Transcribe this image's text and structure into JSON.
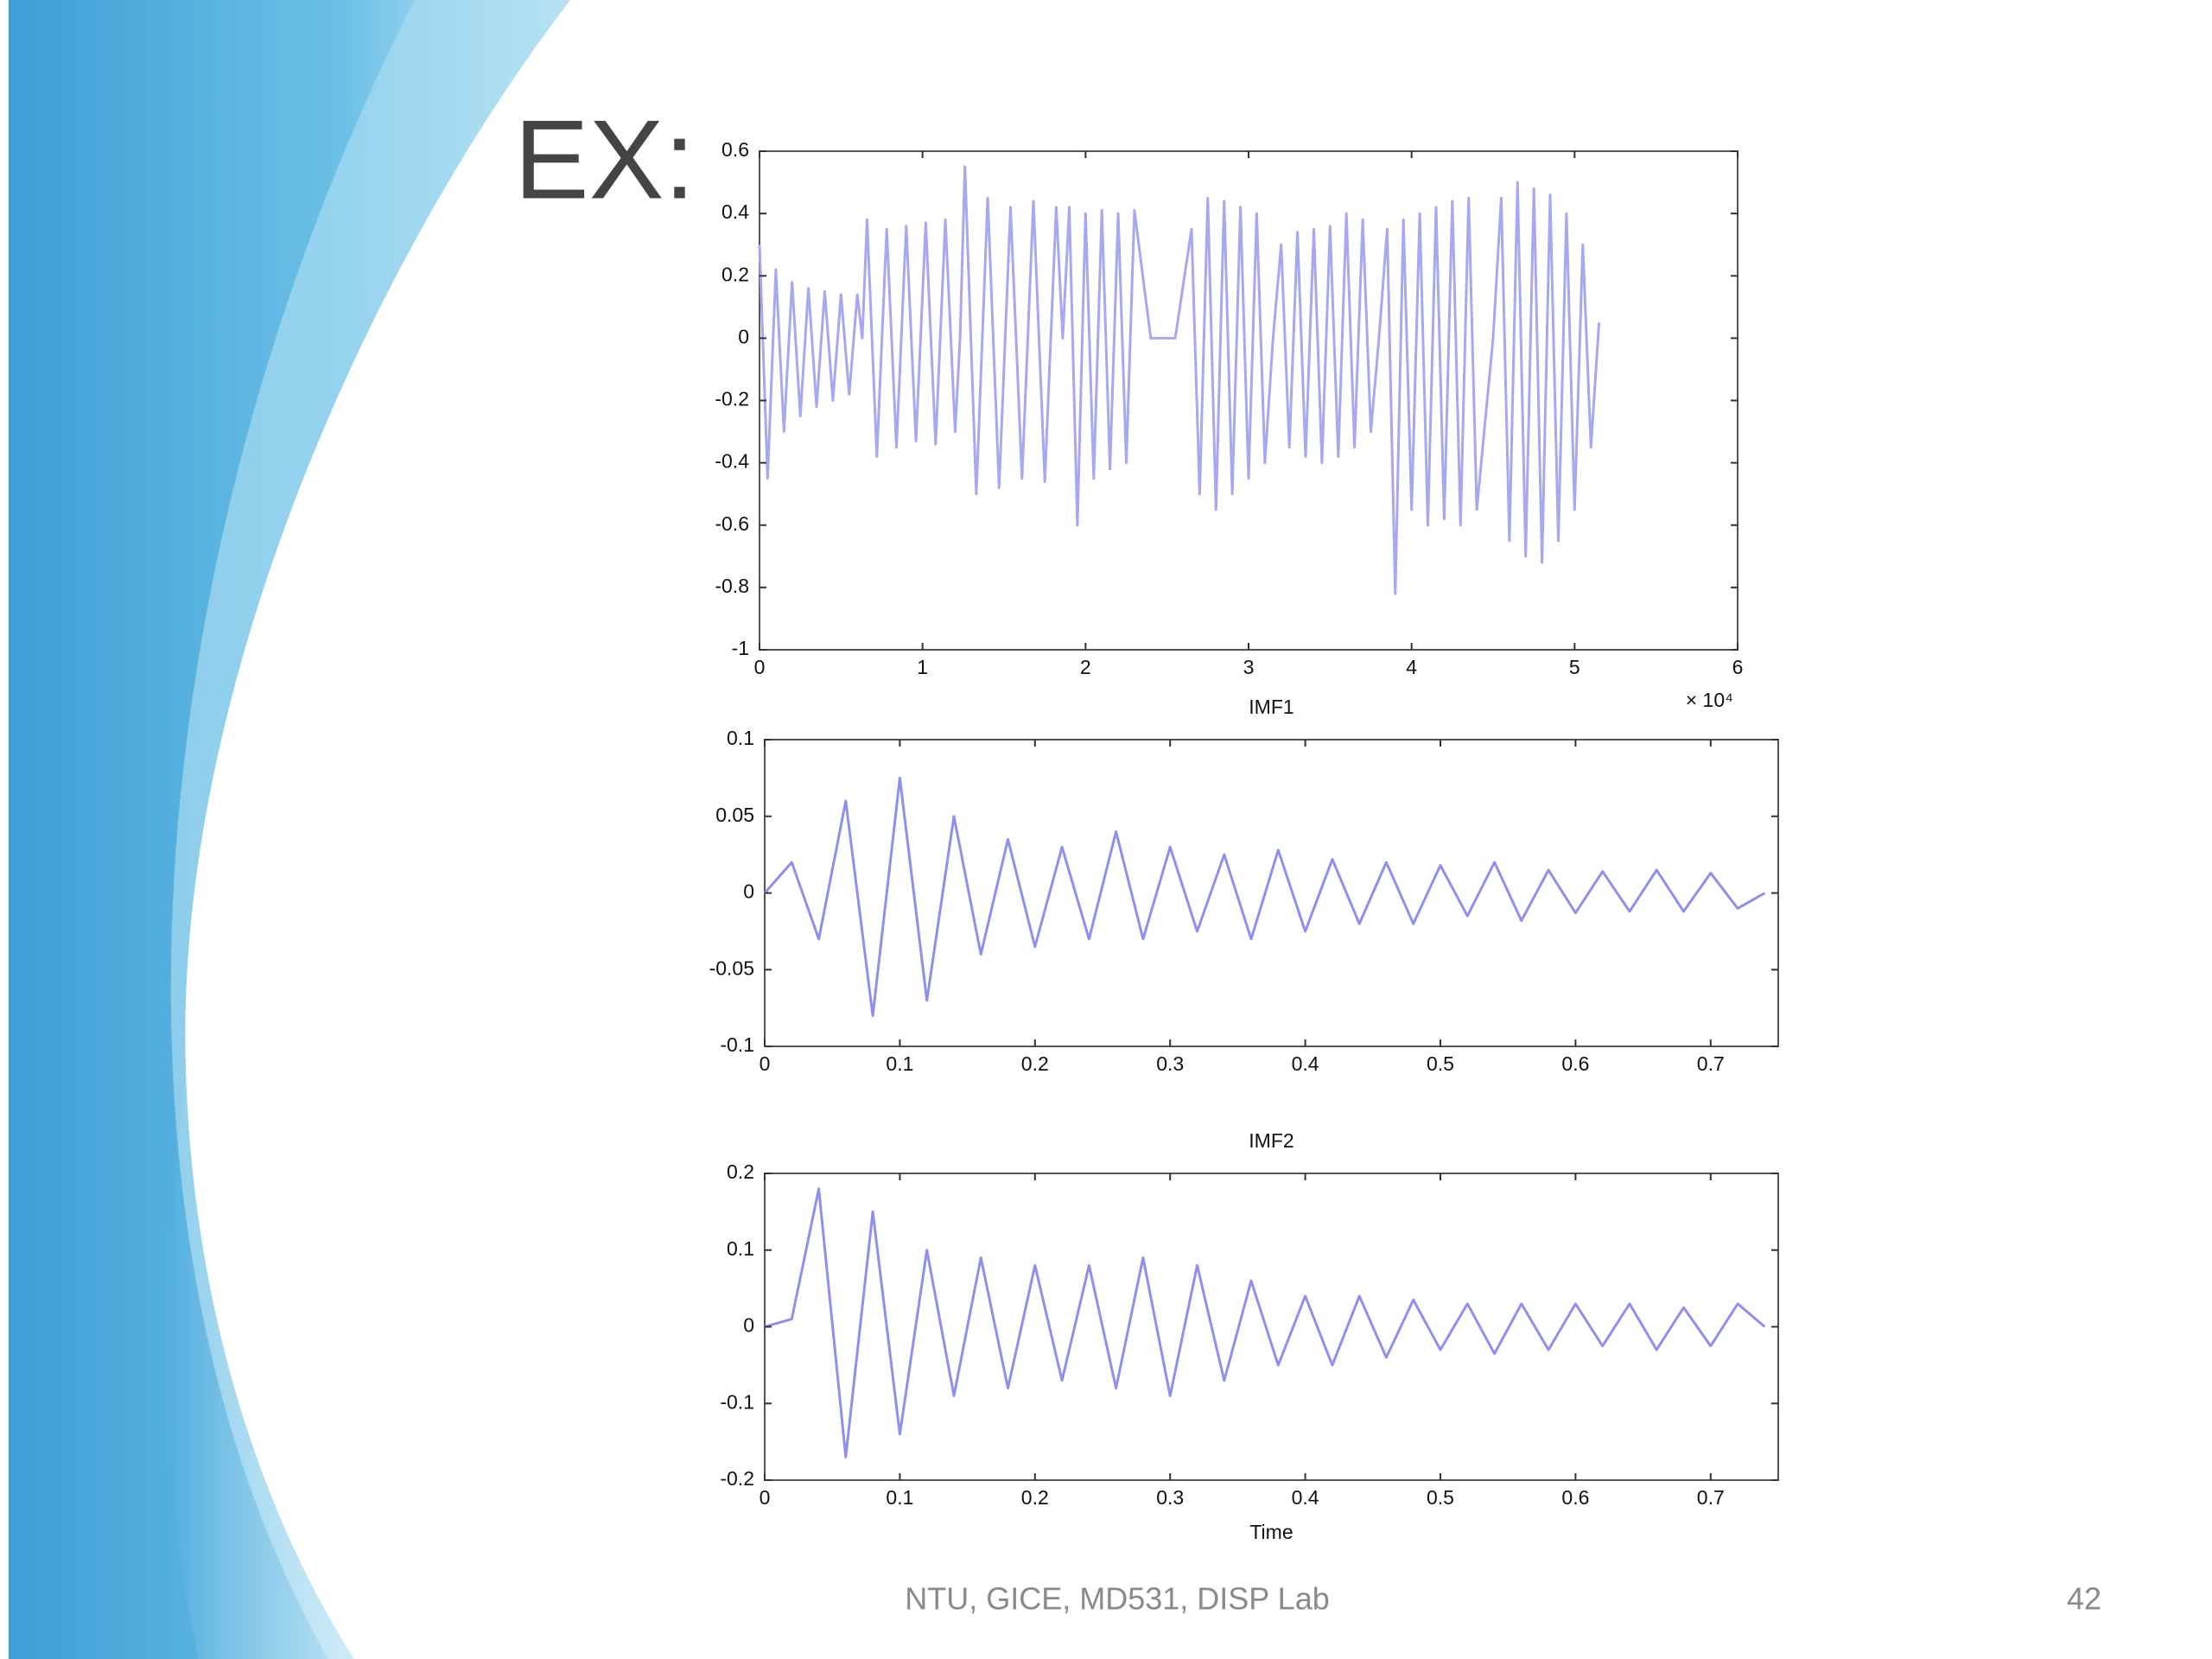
{
  "slide": {
    "heading": "EX:",
    "footer": "NTU, GICE, MD531, DISP Lab",
    "page_number": "42"
  },
  "chart_data": [
    {
      "type": "line",
      "x_scale_label": "× 10⁴",
      "color": "#a7a7f2",
      "x": [
        0,
        0.05,
        0.1,
        0.15,
        0.2,
        0.25,
        0.3,
        0.35,
        0.4,
        0.45,
        0.5,
        0.55,
        0.6,
        0.63,
        0.66,
        0.72,
        0.78,
        0.84,
        0.9,
        0.96,
        1.02,
        1.08,
        1.14,
        1.2,
        1.23,
        1.26,
        1.33,
        1.4,
        1.47,
        1.54,
        1.61,
        1.68,
        1.75,
        1.82,
        1.86,
        1.9,
        1.95,
        2,
        2.05,
        2.1,
        2.15,
        2.2,
        2.25,
        2.3,
        2.4,
        2.55,
        2.65,
        2.7,
        2.75,
        2.8,
        2.85,
        2.9,
        2.95,
        3,
        3.05,
        3.1,
        3.15,
        3.2,
        3.25,
        3.3,
        3.35,
        3.4,
        3.45,
        3.5,
        3.55,
        3.6,
        3.65,
        3.7,
        3.75,
        3.8,
        3.85,
        3.9,
        3.95,
        4,
        4.05,
        4.1,
        4.15,
        4.2,
        4.25,
        4.3,
        4.35,
        4.4,
        4.5,
        4.55,
        4.6,
        4.65,
        4.7,
        4.75,
        4.8,
        4.85,
        4.9,
        4.95,
        5,
        5.05,
        5.1,
        5.15
      ],
      "values": [
        0.3,
        -0.45,
        0.22,
        -0.3,
        0.18,
        -0.25,
        0.16,
        -0.22,
        0.15,
        -0.2,
        0.14,
        -0.18,
        0.14,
        0,
        0.38,
        -0.38,
        0.35,
        -0.35,
        0.36,
        -0.33,
        0.37,
        -0.34,
        0.38,
        -0.3,
        0,
        0.55,
        -0.5,
        0.45,
        -0.48,
        0.42,
        -0.45,
        0.44,
        -0.46,
        0.42,
        0,
        0.42,
        -0.6,
        0.4,
        -0.45,
        0.41,
        -0.42,
        0.4,
        -0.4,
        0.41,
        0,
        0,
        0.35,
        -0.5,
        0.45,
        -0.55,
        0.44,
        -0.5,
        0.42,
        -0.45,
        0.4,
        -0.4,
        0,
        0.3,
        -0.35,
        0.34,
        -0.38,
        0.35,
        -0.4,
        0.36,
        -0.38,
        0.4,
        -0.35,
        0.38,
        -0.3,
        0,
        0.35,
        -0.82,
        0.38,
        -0.55,
        0.4,
        -0.6,
        0.42,
        -0.58,
        0.44,
        -0.6,
        0.45,
        -0.55,
        0,
        0.45,
        -0.65,
        0.5,
        -0.7,
        0.48,
        -0.72,
        0.46,
        -0.65,
        0.4,
        -0.55,
        0.3,
        -0.35,
        0.05
      ],
      "xlim": [
        0,
        6
      ],
      "xticks": [
        0,
        1,
        2,
        3,
        4,
        5,
        6
      ],
      "ylim": [
        -1,
        0.6
      ],
      "yticks": [
        -1,
        -0.8,
        -0.6,
        -0.4,
        -0.2,
        0,
        0.2,
        0.4,
        0.6
      ]
    },
    {
      "type": "line",
      "title": "IMF1",
      "color": "#8f8fee",
      "x": [
        0,
        0.02,
        0.04,
        0.06,
        0.08,
        0.1,
        0.12,
        0.14,
        0.16,
        0.18,
        0.2,
        0.22,
        0.24,
        0.26,
        0.28,
        0.3,
        0.32,
        0.34,
        0.36,
        0.38,
        0.4,
        0.42,
        0.44,
        0.46,
        0.48,
        0.5,
        0.52,
        0.54,
        0.56,
        0.58,
        0.6,
        0.62,
        0.64,
        0.66,
        0.68,
        0.7,
        0.72,
        0.74
      ],
      "values": [
        0,
        0.02,
        -0.03,
        0.06,
        -0.08,
        0.075,
        -0.07,
        0.05,
        -0.04,
        0.035,
        -0.035,
        0.03,
        -0.03,
        0.04,
        -0.03,
        0.03,
        -0.025,
        0.025,
        -0.03,
        0.028,
        -0.025,
        0.022,
        -0.02,
        0.02,
        -0.02,
        0.018,
        -0.015,
        0.02,
        -0.018,
        0.015,
        -0.013,
        0.014,
        -0.012,
        0.015,
        -0.012,
        0.013,
        -0.01,
        0
      ],
      "xlim": [
        0,
        0.75
      ],
      "xticks": [
        0,
        0.1,
        0.2,
        0.3,
        0.4,
        0.5,
        0.6,
        0.7
      ],
      "ylim": [
        -0.1,
        0.1
      ],
      "yticks": [
        -0.1,
        -0.05,
        0,
        0.05,
        0.1
      ]
    },
    {
      "type": "line",
      "title": "IMF2",
      "xlabel": "Time",
      "color": "#8f8fee",
      "x": [
        0,
        0.02,
        0.04,
        0.06,
        0.08,
        0.1,
        0.12,
        0.14,
        0.16,
        0.18,
        0.2,
        0.22,
        0.24,
        0.26,
        0.28,
        0.3,
        0.32,
        0.34,
        0.36,
        0.38,
        0.4,
        0.42,
        0.44,
        0.46,
        0.48,
        0.5,
        0.52,
        0.54,
        0.56,
        0.58,
        0.6,
        0.62,
        0.64,
        0.66,
        0.68,
        0.7,
        0.72,
        0.74
      ],
      "values": [
        0,
        0.01,
        0.18,
        -0.17,
        0.15,
        -0.14,
        0.1,
        -0.09,
        0.09,
        -0.08,
        0.08,
        -0.07,
        0.08,
        -0.08,
        0.09,
        -0.09,
        0.08,
        -0.07,
        0.06,
        -0.05,
        0.04,
        -0.05,
        0.04,
        -0.04,
        0.035,
        -0.03,
        0.03,
        -0.035,
        0.03,
        -0.03,
        0.03,
        -0.025,
        0.03,
        -0.03,
        0.025,
        -0.025,
        0.03,
        0
      ],
      "xlim": [
        0,
        0.75
      ],
      "xticks": [
        0,
        0.1,
        0.2,
        0.3,
        0.4,
        0.5,
        0.6,
        0.7
      ],
      "ylim": [
        -0.2,
        0.2
      ],
      "yticks": [
        -0.2,
        -0.1,
        0,
        0.1,
        0.2
      ]
    }
  ]
}
